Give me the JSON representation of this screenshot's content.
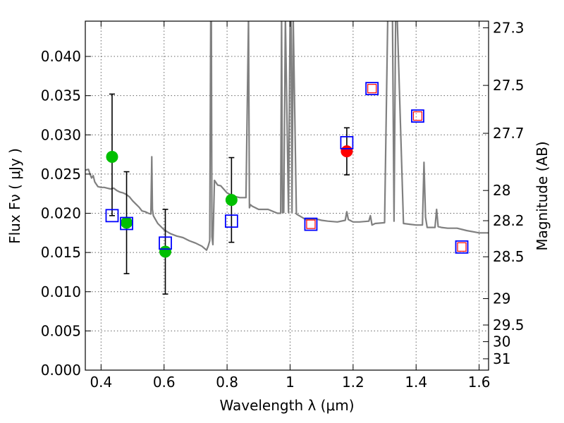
{
  "chart_data": {
    "type": "scatter",
    "xlabel": "Wavelength  λ (μm)",
    "ylabel": "Flux  Fν  ( μJy )",
    "ylabel_right": "Magnitude (AB)",
    "xlim": [
      0.35,
      1.63
    ],
    "ylim": [
      0.0,
      0.0445
    ],
    "xticks": [
      0.4,
      0.6,
      0.8,
      1.0,
      1.2,
      1.4,
      1.6
    ],
    "xtick_labels": [
      "0.4",
      "0.6",
      "0.8",
      "1",
      "1.2",
      "1.4",
      "1.6"
    ],
    "yticks": [
      0.0,
      0.005,
      0.01,
      0.015,
      0.02,
      0.025,
      0.03,
      0.035,
      0.04
    ],
    "ytick_labels": [
      "0.000",
      "0.005",
      "0.010",
      "0.015",
      "0.020",
      "0.025",
      "0.030",
      "0.035",
      "0.040"
    ],
    "right_ticks": [
      {
        "mag": 27.3,
        "label": "27.3"
      },
      {
        "mag": 27.5,
        "label": "27.5"
      },
      {
        "mag": 27.7,
        "label": "27.7"
      },
      {
        "mag": 28.0,
        "label": "28"
      },
      {
        "mag": 28.2,
        "label": "28.2"
      },
      {
        "mag": 28.5,
        "label": "28.5"
      },
      {
        "mag": 29.0,
        "label": "29"
      },
      {
        "mag": 29.5,
        "label": "29.5"
      },
      {
        "mag": 30.0,
        "label": "30"
      },
      {
        "mag": 31.0,
        "label": "31"
      }
    ],
    "grid": true,
    "series": [
      {
        "name": "model spectrum",
        "kind": "line",
        "color": "#808080",
        "x": [
          0.35,
          0.36,
          0.365,
          0.37,
          0.375,
          0.38,
          0.39,
          0.4,
          0.41,
          0.42,
          0.43,
          0.44,
          0.45,
          0.46,
          0.47,
          0.48,
          0.49,
          0.5,
          0.51,
          0.52,
          0.53,
          0.54,
          0.55,
          0.558,
          0.561,
          0.563,
          0.566,
          0.57,
          0.58,
          0.6,
          0.62,
          0.64,
          0.66,
          0.68,
          0.7,
          0.72,
          0.735,
          0.74,
          0.745,
          0.748,
          0.75,
          0.752,
          0.755,
          0.76,
          0.77,
          0.78,
          0.8,
          0.82,
          0.84,
          0.86,
          0.868,
          0.871,
          0.874,
          0.88,
          0.9,
          0.93,
          0.96,
          0.97,
          0.973,
          0.976,
          0.98,
          0.985,
          0.995,
          1.0,
          1.003,
          1.006,
          1.01,
          1.02,
          1.05,
          1.08,
          1.1,
          1.12,
          1.15,
          1.175,
          1.18,
          1.185,
          1.2,
          1.22,
          1.25,
          1.255,
          1.26,
          1.265,
          1.27,
          1.3,
          1.31,
          1.325,
          1.33,
          1.335,
          1.34,
          1.36,
          1.38,
          1.4,
          1.42,
          1.425,
          1.43,
          1.435,
          1.44,
          1.46,
          1.465,
          1.47,
          1.48,
          1.5,
          1.53,
          1.56,
          1.6,
          1.63
        ],
        "values": [
          0.0255,
          0.0256,
          0.025,
          0.0245,
          0.0248,
          0.024,
          0.0234,
          0.0233,
          0.0233,
          0.0232,
          0.0231,
          0.0232,
          0.0229,
          0.0227,
          0.0226,
          0.0224,
          0.0221,
          0.0216,
          0.0212,
          0.0208,
          0.0203,
          0.0202,
          0.02,
          0.0199,
          0.0272,
          0.0205,
          0.0197,
          0.0194,
          0.0187,
          0.0179,
          0.0174,
          0.0171,
          0.0169,
          0.0165,
          0.0162,
          0.0158,
          0.0153,
          0.0158,
          0.0165,
          0.045,
          0.0445,
          0.017,
          0.016,
          0.0242,
          0.0236,
          0.0235,
          0.0226,
          0.0222,
          0.022,
          0.022,
          0.045,
          0.0207,
          0.0211,
          0.0209,
          0.0205,
          0.0205,
          0.02,
          0.02,
          0.045,
          0.0201,
          0.0201,
          0.045,
          0.0201,
          0.045,
          0.045,
          0.0201,
          0.045,
          0.0199,
          0.0192,
          0.0193,
          0.0191,
          0.019,
          0.0189,
          0.0191,
          0.0202,
          0.0192,
          0.0189,
          0.0189,
          0.019,
          0.0197,
          0.0185,
          0.0186,
          0.0187,
          0.0188,
          0.045,
          0.045,
          0.019,
          0.045,
          0.045,
          0.0187,
          0.0186,
          0.0185,
          0.0185,
          0.0265,
          0.0195,
          0.0182,
          0.0182,
          0.0182,
          0.0205,
          0.0183,
          0.0182,
          0.0181,
          0.0181,
          0.0178,
          0.0175,
          0.0175
        ]
      },
      {
        "name": "green points",
        "kind": "errorbar",
        "color": "#00bf00",
        "points": [
          {
            "x": 0.435,
            "y": 0.0272,
            "err_low": 0.0075,
            "err_high": 0.008
          },
          {
            "x": 0.481,
            "y": 0.0188,
            "err_low": 0.0065,
            "err_high": 0.0065
          },
          {
            "x": 0.604,
            "y": 0.0151,
            "err_low": 0.0054,
            "err_high": 0.0054
          },
          {
            "x": 0.814,
            "y": 0.0217,
            "err_low": 0.0054,
            "err_high": 0.0054
          }
        ]
      },
      {
        "name": "red point",
        "kind": "errorbar",
        "color": "#ff0000",
        "points": [
          {
            "x": 1.18,
            "y": 0.0279,
            "err_low": 0.003,
            "err_high": 0.003
          }
        ]
      },
      {
        "name": "model photometry (blue squares)",
        "kind": "marker",
        "color": "#0000ff",
        "x": [
          0.435,
          0.481,
          0.604,
          0.814,
          1.066,
          1.18,
          1.26,
          1.405,
          1.545
        ],
        "values": [
          0.0197,
          0.0187,
          0.0162,
          0.019,
          0.0186,
          0.029,
          0.0359,
          0.0324,
          0.0157
        ]
      },
      {
        "name": "red squares",
        "kind": "marker",
        "color": "#ff0000",
        "x": [
          1.066,
          1.26,
          1.405,
          1.545
        ],
        "values": [
          0.0186,
          0.0359,
          0.0324,
          0.0157
        ]
      }
    ]
  }
}
